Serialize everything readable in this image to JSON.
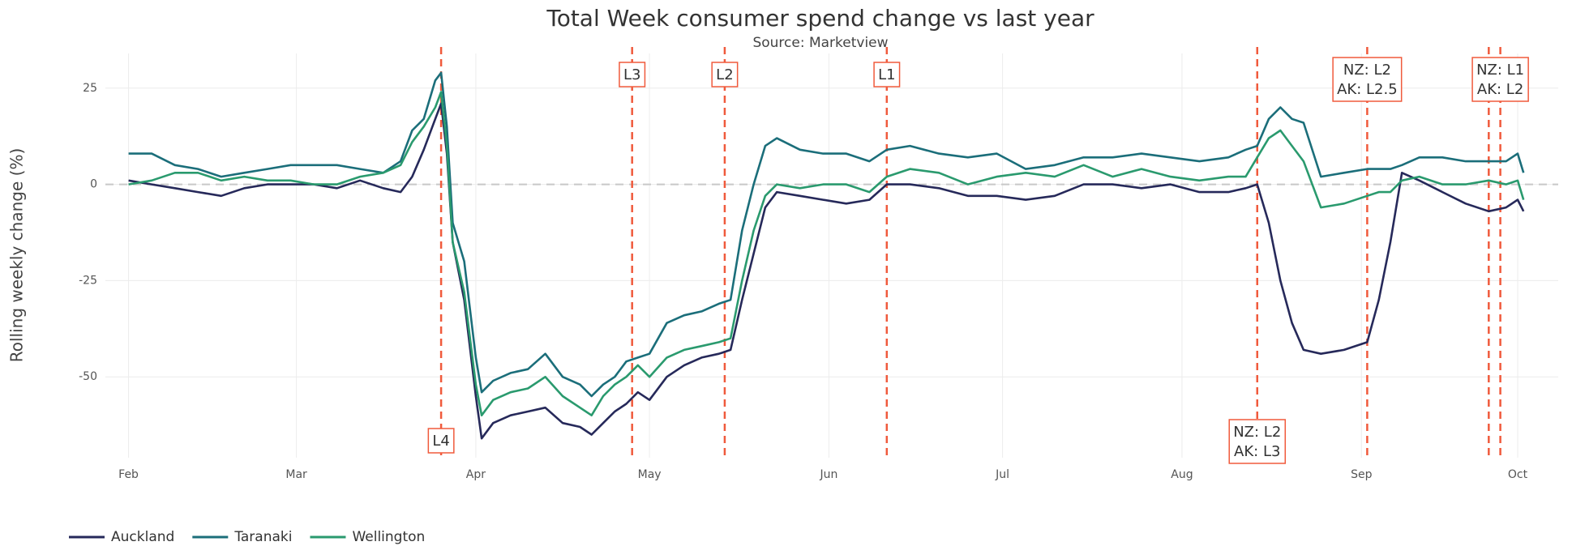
{
  "chart_data": {
    "type": "line",
    "title": "Total Week consumer spend change vs last year",
    "subtitle": "Source: Marketview",
    "y_label": "Rolling weekly change (%)",
    "x": [
      0,
      4,
      8,
      12,
      16,
      20,
      24,
      28,
      32,
      36,
      40,
      44,
      47,
      49,
      51,
      53,
      54,
      55,
      56,
      58,
      60,
      61,
      63,
      66,
      69,
      72,
      75,
      78,
      80,
      82,
      84,
      86,
      88,
      90,
      93,
      96,
      99,
      102,
      104,
      106,
      108,
      110,
      112,
      116,
      120,
      124,
      128,
      131,
      135,
      140,
      145,
      150,
      155,
      160,
      165,
      170,
      175,
      180,
      185,
      190,
      193,
      195,
      197,
      199,
      201,
      203,
      206,
      210,
      214,
      216,
      218,
      220,
      223,
      227,
      231,
      235,
      238,
      240,
      241
    ],
    "series": [
      {
        "name": "Auckland",
        "color": "#26295a",
        "values": [
          1,
          0,
          -1,
          -2,
          -3,
          -1,
          0,
          0,
          0,
          -1,
          1,
          -1,
          -2,
          2,
          9,
          17,
          21,
          8,
          -15,
          -30,
          -55,
          -66,
          -62,
          -60,
          -59,
          -58,
          -62,
          -63,
          -65,
          -62,
          -59,
          -57,
          -54,
          -56,
          -50,
          -47,
          -45,
          -44,
          -43,
          -30,
          -18,
          -6,
          -2,
          -3,
          -4,
          -5,
          -4,
          0,
          0,
          -1,
          -3,
          -3,
          -4,
          -3,
          0,
          0,
          -1,
          0,
          -2,
          -2,
          -1,
          0,
          -10,
          -25,
          -36,
          -43,
          -44,
          -43,
          -41,
          -30,
          -15,
          3,
          1,
          -2,
          -5,
          -7,
          -6,
          -4,
          -7
        ]
      },
      {
        "name": "Taranaki",
        "color": "#1b6e7a",
        "values": [
          8,
          8,
          5,
          4,
          2,
          3,
          4,
          5,
          5,
          5,
          4,
          3,
          6,
          14,
          17,
          27,
          29,
          15,
          -10,
          -20,
          -45,
          -54,
          -51,
          -49,
          -48,
          -44,
          -50,
          -52,
          -55,
          -52,
          -50,
          -46,
          -45,
          -44,
          -36,
          -34,
          -33,
          -31,
          -30,
          -12,
          0,
          10,
          12,
          9,
          8,
          8,
          6,
          9,
          10,
          8,
          7,
          8,
          4,
          5,
          7,
          7,
          8,
          7,
          6,
          7,
          9,
          10,
          17,
          20,
          17,
          16,
          2,
          3,
          4,
          4,
          4,
          5,
          7,
          7,
          6,
          6,
          6,
          8,
          3
        ]
      },
      {
        "name": "Wellington",
        "color": "#2a9a6e",
        "values": [
          0,
          1,
          3,
          3,
          1,
          2,
          1,
          1,
          0,
          0,
          2,
          3,
          5,
          11,
          15,
          20,
          24,
          10,
          -15,
          -28,
          -52,
          -60,
          -56,
          -54,
          -53,
          -50,
          -55,
          -58,
          -60,
          -55,
          -52,
          -50,
          -47,
          -50,
          -45,
          -43,
          -42,
          -41,
          -40,
          -25,
          -12,
          -3,
          0,
          -1,
          0,
          0,
          -2,
          2,
          4,
          3,
          0,
          2,
          3,
          2,
          5,
          2,
          4,
          2,
          1,
          2,
          2,
          7,
          12,
          14,
          10,
          6,
          -6,
          -5,
          -3,
          -2,
          -2,
          1,
          2,
          0,
          0,
          1,
          0,
          1,
          -4
        ]
      }
    ],
    "xlim": [
      -4,
      247
    ],
    "xticks": [
      {
        "value": 0,
        "label": "Feb"
      },
      {
        "value": 29,
        "label": "Mar"
      },
      {
        "value": 60,
        "label": "Apr"
      },
      {
        "value": 90,
        "label": "May"
      },
      {
        "value": 121,
        "label": "Jun"
      },
      {
        "value": 151,
        "label": "Jul"
      },
      {
        "value": 182,
        "label": "Aug"
      },
      {
        "value": 213,
        "label": "Sep"
      },
      {
        "value": 240,
        "label": "Oct"
      }
    ],
    "ylim": [
      -71,
      34
    ],
    "yticks": [
      25,
      0,
      -25,
      -50
    ],
    "grid": true,
    "zero_line": true,
    "vlines": [
      54,
      87,
      103,
      131,
      195,
      214,
      235,
      237
    ],
    "vline_color": "#f05a3c",
    "annotations": [
      {
        "x": 54,
        "text": [
          "L4"
        ],
        "position": "bottom"
      },
      {
        "x": 87,
        "text": [
          "L3"
        ],
        "position": "top"
      },
      {
        "x": 103,
        "text": [
          "L2"
        ],
        "position": "top"
      },
      {
        "x": 131,
        "text": [
          "L1"
        ],
        "position": "top"
      },
      {
        "x": 195,
        "text": [
          "NZ: L2",
          "AK: L3"
        ],
        "position": "bottom"
      },
      {
        "x": 214,
        "text": [
          "NZ: L2",
          "AK: L2.5"
        ],
        "position": "top"
      },
      {
        "x": 237,
        "text": [
          "NZ: L1",
          "AK: L2"
        ],
        "position": "top"
      }
    ],
    "legend": "bottom-left"
  }
}
